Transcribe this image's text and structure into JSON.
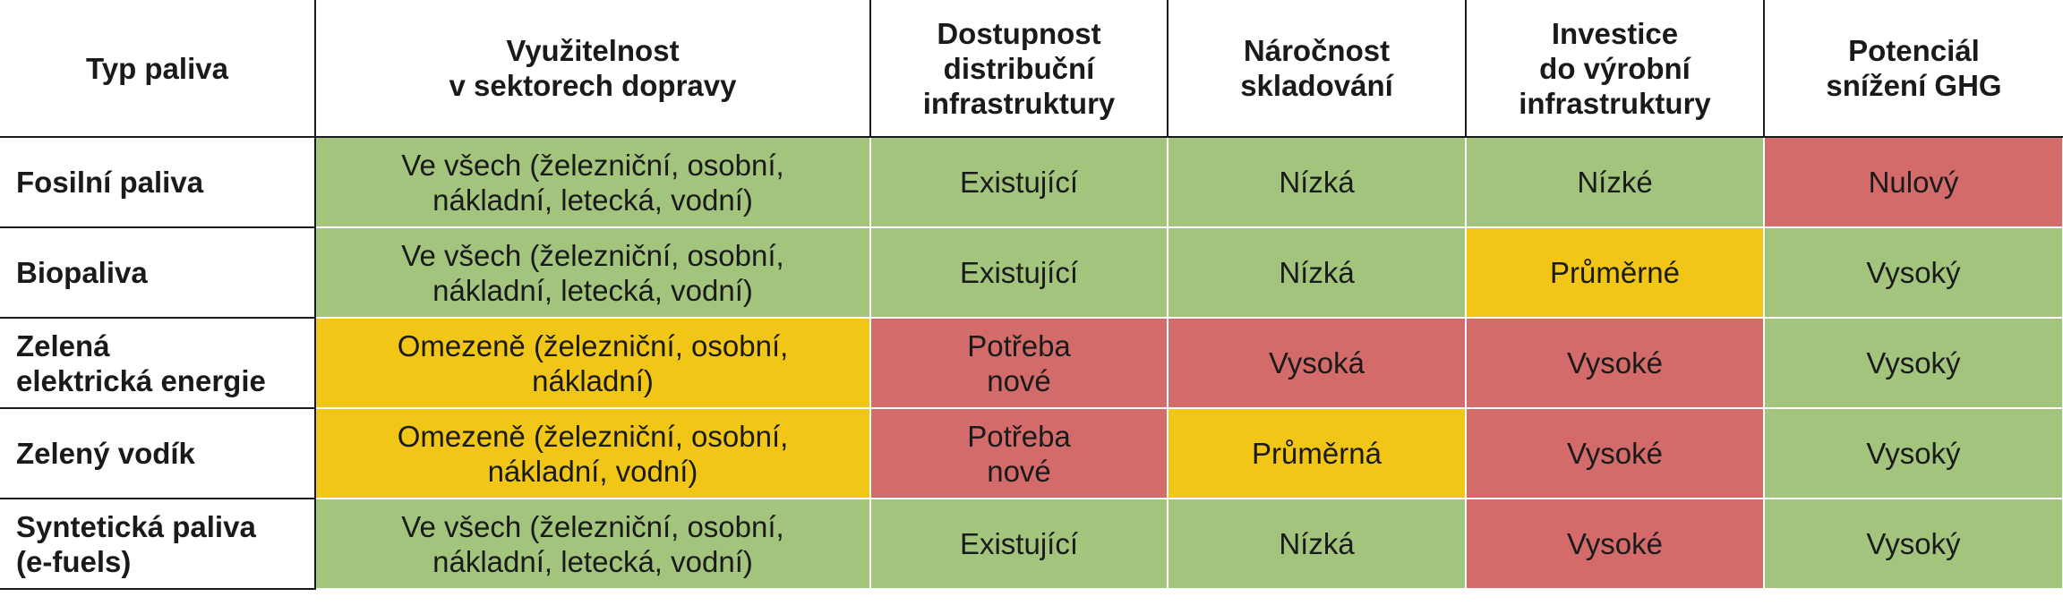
{
  "header": {
    "col0": "Typ paliva",
    "col1": [
      "Využitelnost",
      "v sektorech dopravy"
    ],
    "col2": [
      "Dostupnost",
      "distribuční",
      "infrastruktury"
    ],
    "col3": [
      "Náročnost",
      "skladování"
    ],
    "col4": [
      "Investice",
      "do výrobní",
      "infrastruktury"
    ],
    "col5": [
      "Potenciál",
      "snížení GHG"
    ]
  },
  "rows": [
    {
      "name": [
        "Fosilní paliva"
      ],
      "c1": [
        "Ve všech (železniční, osobní,",
        "nákladní, letecká, vodní)"
      ],
      "c1_rating": "green",
      "c2": [
        "Existující"
      ],
      "c2_rating": "green",
      "c3": "Nízká",
      "c3_rating": "green",
      "c4": "Nízké",
      "c4_rating": "green",
      "c5": "Nulový",
      "c5_rating": "red"
    },
    {
      "name": [
        "Biopaliva"
      ],
      "c1": [
        "Ve všech (železniční, osobní,",
        "nákladní, letecká, vodní)"
      ],
      "c1_rating": "green",
      "c2": [
        "Existující"
      ],
      "c2_rating": "green",
      "c3": "Nízká",
      "c3_rating": "green",
      "c4": "Průměrné",
      "c4_rating": "yellow",
      "c5": "Vysoký",
      "c5_rating": "green"
    },
    {
      "name": [
        "Zelená",
        "elektrická energie"
      ],
      "c1": [
        "Omezeně (železniční, osobní,",
        "nákladní)"
      ],
      "c1_rating": "yellow",
      "c2": [
        "Potřeba",
        "nové"
      ],
      "c2_rating": "red",
      "c3": "Vysoká",
      "c3_rating": "red",
      "c4": "Vysoké",
      "c4_rating": "red",
      "c5": "Vysoký",
      "c5_rating": "green"
    },
    {
      "name": [
        "Zelený vodík"
      ],
      "c1": [
        "Omezeně (železniční, osobní,",
        "nákladní, vodní)"
      ],
      "c1_rating": "yellow",
      "c2": [
        "Potřeba",
        "nové"
      ],
      "c2_rating": "red",
      "c3": "Průměrná",
      "c3_rating": "yellow",
      "c4": "Vysoké",
      "c4_rating": "red",
      "c5": "Vysoký",
      "c5_rating": "green"
    },
    {
      "name": [
        "Syntetická paliva",
        "(e-fuels)"
      ],
      "c1": [
        "Ve všech (železniční, osobní,",
        "nákladní, letecká, vodní)"
      ],
      "c1_rating": "green",
      "c2": [
        "Existující"
      ],
      "c2_rating": "green",
      "c3": "Nízká",
      "c3_rating": "green",
      "c4": "Vysoké",
      "c4_rating": "red",
      "c5": "Vysoký",
      "c5_rating": "green"
    }
  ],
  "colors": {
    "green": "#a2c47c",
    "yellow": "#f1c617",
    "red": "#d26b69"
  }
}
